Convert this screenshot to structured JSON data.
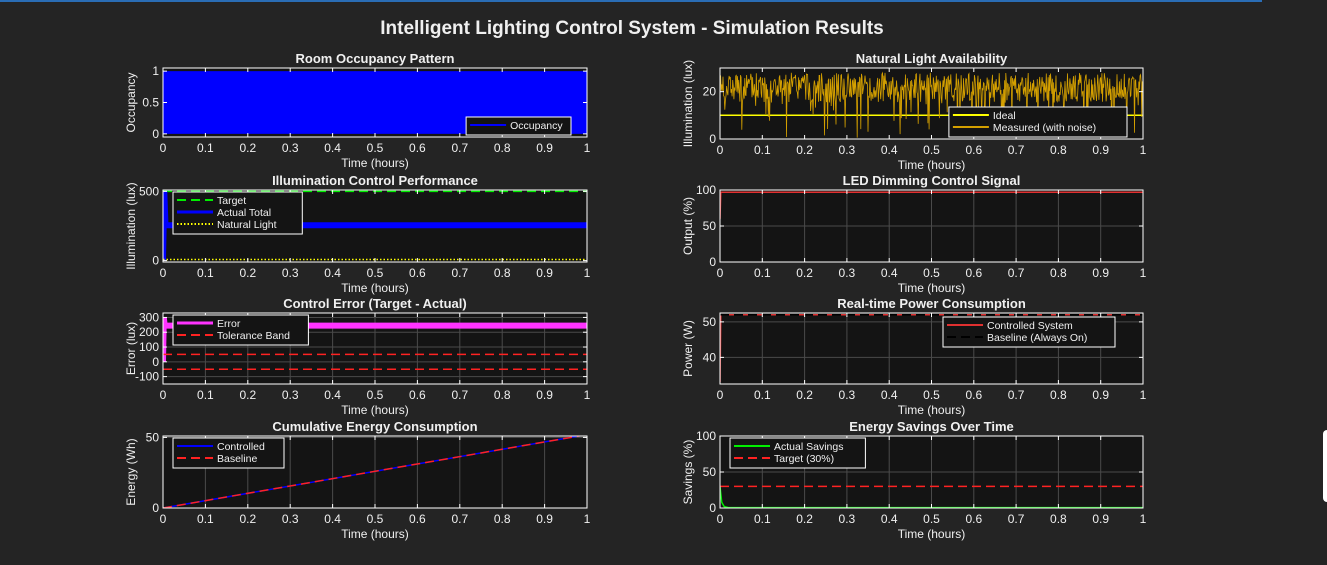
{
  "figure_title": "Intelligent Lighting Control System - Simulation Results",
  "colors": {
    "figure_bg": "#242424",
    "axes_bg": "#141414",
    "axes_edge": "#ffffff",
    "grid": "#4a4a4a"
  },
  "chart_data": [
    {
      "id": "occupancy",
      "type": "area",
      "title": "Room Occupancy Pattern",
      "xlabel": "Time (hours)",
      "ylabel": "Occupancy",
      "xlim": [
        0,
        1
      ],
      "ylim": [
        -0.05,
        1.05
      ],
      "xticks": [
        0,
        0.1,
        0.2,
        0.3,
        0.4,
        0.5,
        0.6,
        0.7,
        0.8,
        0.9,
        1
      ],
      "yticks": [
        0,
        0.5,
        1
      ],
      "grid": false,
      "legend_position": "bottom-right",
      "series": [
        {
          "name": "Occupancy",
          "color": "#0000ff",
          "style": "solid",
          "rapid_toggle": true,
          "low": 0,
          "high": 1,
          "x": [
            0,
            1
          ]
        }
      ]
    },
    {
      "id": "natural_light",
      "type": "line",
      "title": "Natural Light Availability",
      "xlabel": "Time (hours)",
      "ylabel": "Illumination (lux)",
      "xlim": [
        0,
        1
      ],
      "ylim": [
        0,
        30
      ],
      "xticks": [
        0,
        0.1,
        0.2,
        0.3,
        0.4,
        0.5,
        0.6,
        0.7,
        0.8,
        0.9,
        1
      ],
      "yticks": [
        0,
        20
      ],
      "grid": false,
      "legend_position": "bottom-right",
      "series": [
        {
          "name": "Ideal",
          "color": "#ffff00",
          "style": "solid",
          "x": [
            0,
            1
          ],
          "y": [
            10,
            10
          ]
        },
        {
          "name": "Measured (with noise)",
          "color": "#d4a000",
          "style": "solid",
          "noise": true,
          "low": 0,
          "high": 28,
          "x": [
            0,
            1
          ]
        }
      ]
    },
    {
      "id": "illumination",
      "type": "line",
      "title": "Illumination Control Performance",
      "xlabel": "Time (hours)",
      "ylabel": "Illumination (lux)",
      "xlim": [
        0,
        1
      ],
      "ylim": [
        -10,
        510
      ],
      "xticks": [
        0,
        0.1,
        0.2,
        0.3,
        0.4,
        0.5,
        0.6,
        0.7,
        0.8,
        0.9,
        1
      ],
      "yticks": [
        0,
        500
      ],
      "grid": false,
      "legend_position": "top-left",
      "series": [
        {
          "name": "Target",
          "color": "#00ee00",
          "style": "dash",
          "x": [
            0,
            1
          ],
          "y": [
            500,
            500
          ]
        },
        {
          "name": "Actual Total",
          "color": "#0000ff",
          "style": "solid",
          "width": 6,
          "x": [
            0,
            0.003,
            0.006,
            1
          ],
          "y": [
            0,
            500,
            255,
            255
          ]
        },
        {
          "name": "Natural Light",
          "color": "#ffff00",
          "style": "dot",
          "x": [
            0,
            1
          ],
          "y": [
            8,
            8
          ]
        }
      ]
    },
    {
      "id": "led_dimming",
      "type": "line",
      "title": "LED Dimming Control Signal",
      "xlabel": "Time (hours)",
      "ylabel": "Output (%)",
      "xlim": [
        0,
        1
      ],
      "ylim": [
        0,
        100
      ],
      "xticks": [
        0,
        0.1,
        0.2,
        0.3,
        0.4,
        0.5,
        0.6,
        0.7,
        0.8,
        0.9,
        1
      ],
      "yticks": [
        0,
        50,
        100
      ],
      "grid": true,
      "legend_position": "none",
      "series": [
        {
          "name": "",
          "color": "#e03030",
          "style": "solid",
          "x": [
            0,
            0.002,
            1
          ],
          "y": [
            60,
            97,
            97
          ]
        }
      ]
    },
    {
      "id": "control_error",
      "type": "line",
      "title": "Control Error (Target - Actual)",
      "xlabel": "Time (hours)",
      "ylabel": "Error (lux)",
      "xlim": [
        0,
        1
      ],
      "ylim": [
        -150,
        330
      ],
      "xticks": [
        0,
        0.1,
        0.2,
        0.3,
        0.4,
        0.5,
        0.6,
        0.7,
        0.8,
        0.9,
        1
      ],
      "yticks": [
        -100,
        0,
        100,
        200,
        300
      ],
      "grid": true,
      "legend_position": "top-left",
      "series": [
        {
          "name": "Error",
          "color": "#ff33ff",
          "style": "solid",
          "width": 6,
          "x": [
            0,
            0.002,
            0.004,
            1
          ],
          "y": [
            0,
            300,
            245,
            245
          ]
        },
        {
          "name": "Tolerance Band",
          "color": "#ff2222",
          "style": "dash",
          "x": [
            0,
            1
          ],
          "y": [
            50,
            50
          ]
        },
        {
          "name": "",
          "color": "#ff2222",
          "style": "dash",
          "x": [
            0,
            1
          ],
          "y": [
            -50,
            -50
          ]
        }
      ]
    },
    {
      "id": "power",
      "type": "line",
      "title": "Real-time Power Consumption",
      "xlabel": "Time (hours)",
      "ylabel": "Power (W)",
      "xlim": [
        0,
        1
      ],
      "ylim": [
        32.5,
        52.5
      ],
      "xticks": [
        0,
        0.1,
        0.2,
        0.3,
        0.4,
        0.5,
        0.6,
        0.7,
        0.8,
        0.9,
        1
      ],
      "yticks": [
        40,
        50
      ],
      "grid": true,
      "legend_position": "top-right",
      "series": [
        {
          "name": "Controlled System",
          "color": "#e03030",
          "style": "solid",
          "x": [
            0,
            0.002,
            1
          ],
          "y": [
            33,
            52,
            52
          ]
        },
        {
          "name": "Baseline (Always On)",
          "color": "#000000",
          "style": "dash",
          "x": [
            0,
            1
          ],
          "y": [
            52,
            52
          ]
        }
      ]
    },
    {
      "id": "energy",
      "type": "line",
      "title": "Cumulative Energy Consumption",
      "xlabel": "Time (hours)",
      "ylabel": "Energy (Wh)",
      "xlim": [
        0,
        1
      ],
      "ylim": [
        0,
        51
      ],
      "xticks": [
        0,
        0.1,
        0.2,
        0.3,
        0.4,
        0.5,
        0.6,
        0.7,
        0.8,
        0.9,
        1
      ],
      "yticks": [
        0,
        50
      ],
      "grid": true,
      "legend_position": "top-left",
      "series": [
        {
          "name": "Controlled",
          "color": "#0000ff",
          "style": "solid",
          "x": [
            0,
            1
          ],
          "y": [
            0,
            52
          ]
        },
        {
          "name": "Baseline",
          "color": "#ff2222",
          "style": "dash",
          "x": [
            0,
            1
          ],
          "y": [
            0,
            52
          ]
        }
      ]
    },
    {
      "id": "savings",
      "type": "line",
      "title": "Energy Savings Over Time",
      "xlabel": "Time (hours)",
      "ylabel": "Savings (%)",
      "xlim": [
        0,
        1
      ],
      "ylim": [
        0,
        100
      ],
      "xticks": [
        0,
        0.1,
        0.2,
        0.3,
        0.4,
        0.5,
        0.6,
        0.7,
        0.8,
        0.9,
        1
      ],
      "yticks": [
        0,
        50,
        100
      ],
      "grid": true,
      "legend_position": "top-left",
      "series": [
        {
          "name": "Actual Savings",
          "color": "#00ee00",
          "style": "solid",
          "x": [
            0,
            0.004,
            0.01,
            0.02,
            1
          ],
          "y": [
            30,
            8,
            2,
            0.5,
            0.5
          ]
        },
        {
          "name": "Target (30%)",
          "color": "#ff2222",
          "style": "dash",
          "x": [
            0,
            1
          ],
          "y": [
            30,
            30
          ]
        }
      ]
    }
  ]
}
